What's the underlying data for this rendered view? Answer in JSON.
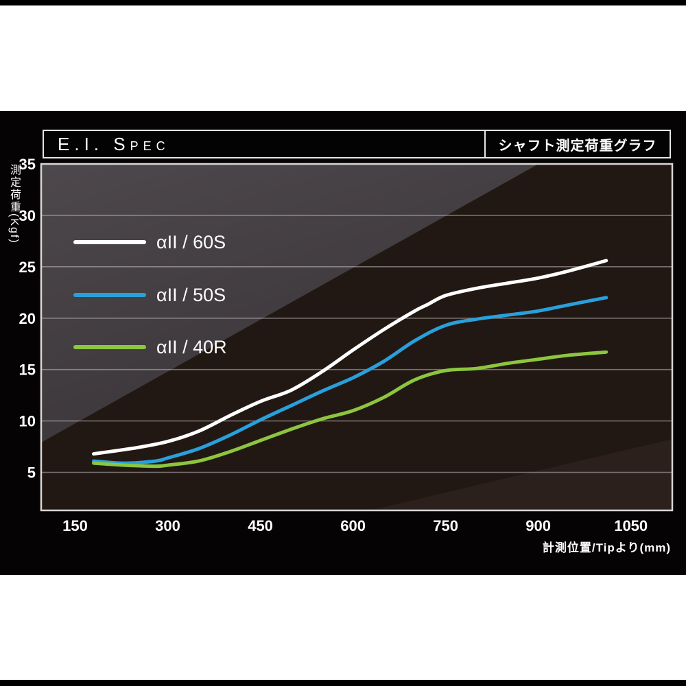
{
  "header": {
    "title": "E.I. Spec",
    "subtitle": "シャフト測定荷重グラフ"
  },
  "colors": {
    "panel_bg": "#050303",
    "plot_bg_dark": "#221813",
    "plot_bg_light_top": "#4d484c",
    "plot_bg_light_bottom": "#393437",
    "plot_bg_wedge": "#2b201b",
    "grid": "#cfcacd",
    "plot_border": "#d9d6d8",
    "series_60s": "#ffffff",
    "series_50s": "#29a0dc",
    "series_40r": "#8cc63f"
  },
  "chart_data": {
    "type": "line",
    "title": "E.I. Spec",
    "subtitle": "シャフト測定荷重グラフ",
    "xlabel": "計測位置/Tipより(mm)",
    "ylabel": "測定荷重(Kgf)",
    "x_ticks": [
      150,
      300,
      450,
      600,
      750,
      900,
      1050
    ],
    "y_ticks": [
      35,
      30,
      25,
      20,
      15,
      10,
      5
    ],
    "xlim": [
      95,
      1117
    ],
    "ylim": [
      1.3,
      35
    ],
    "grid": "horizontal",
    "legend_position": "inside-top-left",
    "series": [
      {
        "name": "αII / 60S",
        "color": "#ffffff",
        "x": [
          180,
          250,
          300,
          350,
          400,
          450,
          500,
          550,
          600,
          650,
          700,
          720,
          750,
          800,
          850,
          900,
          950,
          1010
        ],
        "y": [
          6.8,
          7.4,
          8.0,
          9.0,
          10.5,
          11.9,
          13.0,
          14.8,
          16.9,
          18.9,
          20.7,
          21.3,
          22.2,
          22.9,
          23.4,
          23.9,
          24.6,
          25.6
        ]
      },
      {
        "name": "αII / 50S",
        "color": "#29a0dc",
        "x": [
          180,
          230,
          280,
          300,
          350,
          400,
          450,
          500,
          550,
          600,
          650,
          700,
          750,
          800,
          850,
          900,
          950,
          1010
        ],
        "y": [
          6.1,
          5.9,
          6.1,
          6.4,
          7.3,
          8.6,
          10.1,
          11.5,
          12.9,
          14.2,
          15.8,
          17.8,
          19.3,
          19.9,
          20.3,
          20.7,
          21.3,
          22.0
        ]
      },
      {
        "name": "αII / 40R",
        "color": "#8cc63f",
        "x": [
          180,
          230,
          280,
          300,
          350,
          400,
          450,
          500,
          550,
          600,
          650,
          700,
          750,
          800,
          850,
          900,
          950,
          1010
        ],
        "y": [
          5.9,
          5.7,
          5.6,
          5.7,
          6.1,
          7.0,
          8.1,
          9.2,
          10.2,
          11.0,
          12.3,
          14.0,
          14.9,
          15.1,
          15.6,
          16.0,
          16.4,
          16.7
        ]
      }
    ]
  }
}
